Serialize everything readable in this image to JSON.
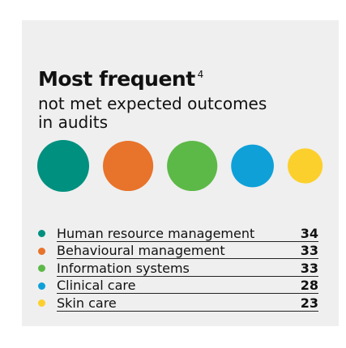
{
  "chart_data": {
    "type": "bubble",
    "title": "Most frequent",
    "title_note": "4",
    "subtitle": "not met expected outcomes in audits",
    "categories": [
      "Human resource management",
      "Behavioural management",
      "Information systems",
      "Clinical care",
      "Skin care"
    ],
    "values": [
      34,
      33,
      33,
      28,
      23
    ],
    "colors": [
      "#00907f",
      "#e8732a",
      "#5cb947",
      "#0fa0d8",
      "#fcd02c"
    ]
  }
}
